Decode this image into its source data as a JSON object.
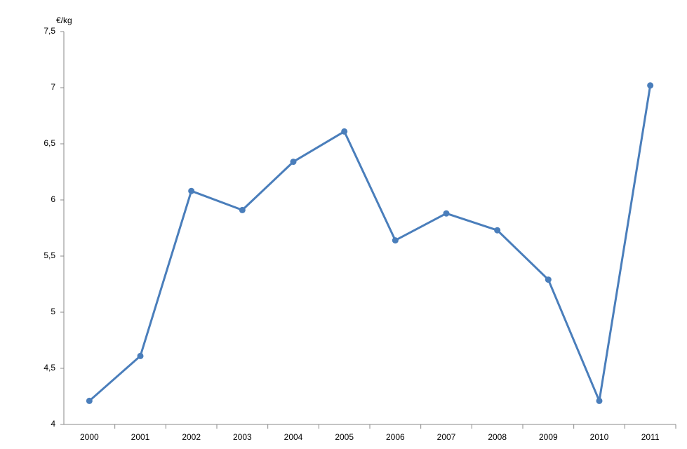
{
  "chart_data": {
    "type": "line",
    "y_label": "€/kg",
    "categories": [
      "2000",
      "2001",
      "2002",
      "2003",
      "2004",
      "2005",
      "2006",
      "2007",
      "2008",
      "2009",
      "2010",
      "2011"
    ],
    "series": [
      {
        "color": "#4a7ebb",
        "values": [
          4.21,
          4.61,
          6.08,
          5.91,
          6.34,
          6.61,
          5.64,
          5.88,
          5.73,
          5.29,
          4.21,
          7.02
        ]
      }
    ],
    "ylim": [
      4,
      7.5
    ],
    "yticks": [
      4,
      {
        "value": 4.5,
        "label": "4,5"
      },
      5,
      {
        "value": 5.5,
        "label": "5,5"
      },
      6,
      {
        "value": 6.5,
        "label": "6,5"
      },
      7,
      {
        "value": 7.5,
        "label": "7,5"
      }
    ],
    "grid": false
  }
}
